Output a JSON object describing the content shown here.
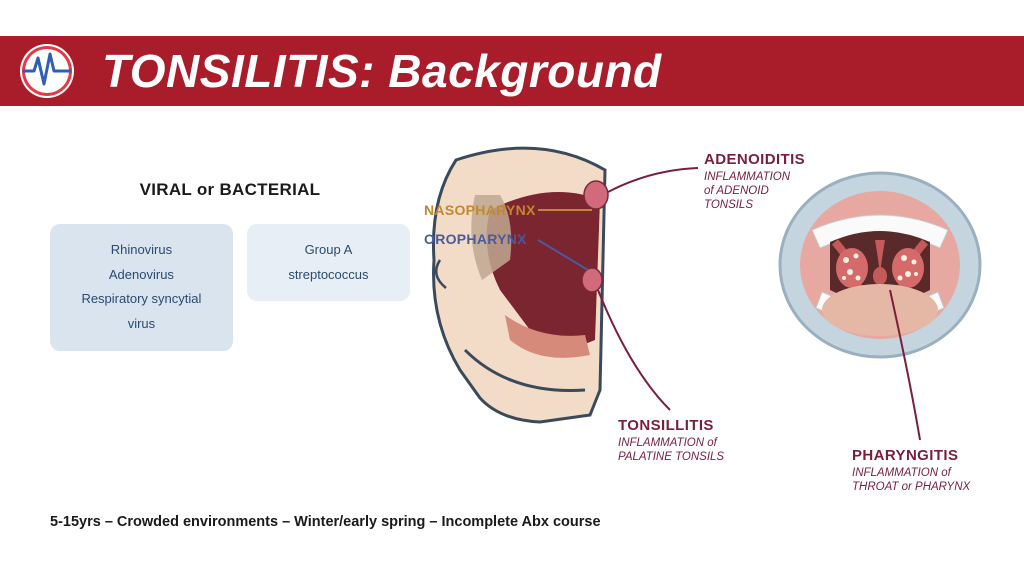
{
  "header": {
    "title_main": "TONSILITIS:",
    "title_sub": "Background",
    "bg_color": "#a91d2b",
    "text_color": "#ffffff",
    "logo": {
      "bg": "#ffffff",
      "pulse_color": "#e63946",
      "cross_color": "#2f5fb5"
    }
  },
  "causes": {
    "heading": "VIRAL or BACTERIAL",
    "heading_color": "#1a1a1a",
    "viral_box": {
      "items": [
        "Rhinovirus",
        "Adenovirus",
        "Respiratory syncytial virus"
      ],
      "bg": "#d9e4ef",
      "text_color": "#2a4a6f"
    },
    "bacterial_box": {
      "items": [
        "Group A streptococcus"
      ],
      "bg": "#e8eef5",
      "text_color": "#2a4a6f"
    }
  },
  "footer": "5-15yrs – Crowded environments – Winter/early spring – Incomplete Abx course",
  "footer_color": "#1a1a1a",
  "diagram": {
    "sagittal": {
      "outline_color": "#3a4a5a",
      "skin_color": "#e8c5b0",
      "cavity_color": "#7a2530",
      "nasal_bone_color": "#bfa890",
      "tonsil_color": "#d16a7a",
      "labels": {
        "nasopharynx": {
          "text": "NASOPHARYNX",
          "color": "#c08830"
        },
        "oropharynx": {
          "text": "OROPHARYNX",
          "color": "#4a5a9a"
        }
      }
    },
    "mouth": {
      "lip_color": "#c5d5e0",
      "tongue_color": "#e5b8a5",
      "pharynx_dark": "#5a2a2a",
      "tonsil_color": "#d56a6a",
      "uvula_color": "#c55a5a",
      "exudate_color": "#f5f0e0"
    },
    "annotations": {
      "adenoiditis": {
        "title": "ADENOIDITIS",
        "sub1": "INFLAMMATION",
        "sub2": "of ADENOID",
        "sub3": "TONSILS"
      },
      "tonsillitis": {
        "title": "TONSILLITIS",
        "sub1": "INFLAMMATION of",
        "sub2": "PALATINE TONSILS"
      },
      "pharyngitis": {
        "title": "PHARYNGITIS",
        "sub1": "INFLAMMATION of",
        "sub2": "THROAT or PHARYNX"
      },
      "title_color": "#7a1f3a",
      "sub_color": "#7a1f3a",
      "line_color": "#7a1f3a"
    }
  }
}
